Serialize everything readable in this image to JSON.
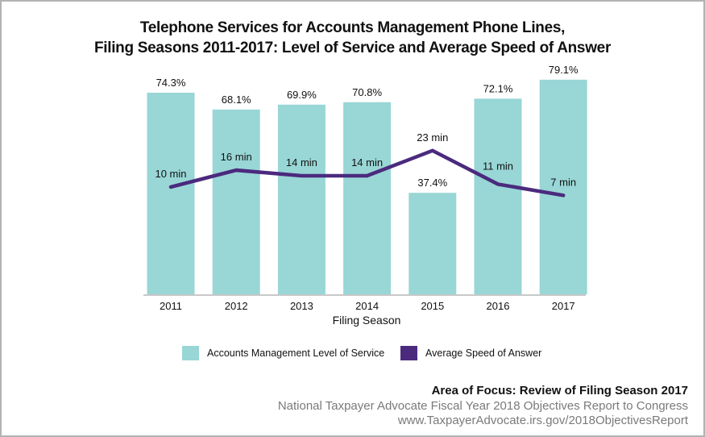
{
  "chart_data": {
    "type": "bar",
    "title_lines": [
      "Telephone Services for Accounts Management Phone Lines,",
      "Filing Seasons 2011-2017: Level of Service and Average Speed of Answer"
    ],
    "xlabel": "Filing Season",
    "ylabel": "",
    "categories": [
      "2011",
      "2012",
      "2013",
      "2014",
      "2015",
      "2016",
      "2017"
    ],
    "series": [
      {
        "name": "Accounts Management Level of Service",
        "type": "bar",
        "unit": "%",
        "values": [
          74.3,
          68.1,
          69.9,
          70.8,
          37.4,
          72.1,
          79.1
        ],
        "labels": [
          "74.3%",
          "68.1%",
          "69.9%",
          "70.8%",
          "37.4%",
          "72.1%",
          "79.1%"
        ],
        "color": "#99d6d6"
      },
      {
        "name": "Average Speed of Answer",
        "type": "line",
        "unit": "min",
        "values": [
          10,
          16,
          14,
          14,
          23,
          11,
          7
        ],
        "labels": [
          "10 min",
          "16 min",
          "14 min",
          "14 min",
          "23 min",
          "11 min",
          "7 min"
        ],
        "color": "#4b2a7e"
      }
    ],
    "ylim_bar": [
      0,
      100
    ],
    "ylim_line": [
      0,
      76
    ],
    "grid": false,
    "legend_position": "bottom"
  },
  "footer": {
    "area_of_focus": "Area of Focus: Review of Filing Season 2017",
    "report": "National Taxpayer Advocate Fiscal Year 2018 Objectives Report to Congress",
    "url": "www.TaxpayerAdvocate.irs.gov/2018ObjectivesReport"
  }
}
